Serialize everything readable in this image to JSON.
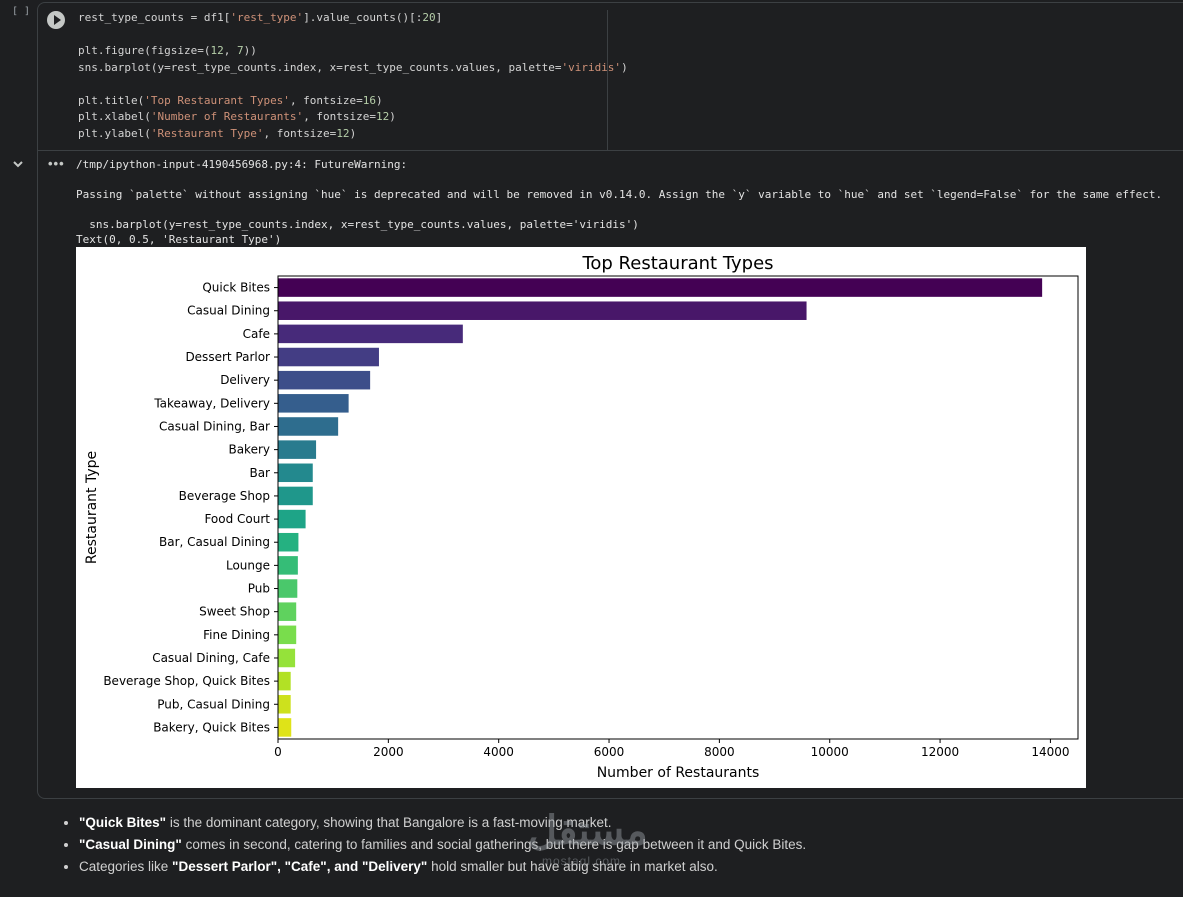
{
  "cell": {
    "bracket": "[ ]",
    "code_lines": [
      [
        [
          "rest_type_counts = df1[",
          ""
        ],
        [
          "'rest_type'",
          "s"
        ],
        [
          "].value_counts()[:",
          ""
        ],
        [
          "20",
          "n"
        ],
        [
          "]",
          ""
        ]
      ],
      [],
      [
        [
          "plt.figure(figsize=(",
          ""
        ],
        [
          "12",
          "n"
        ],
        [
          ", ",
          ""
        ],
        [
          "7",
          "n"
        ],
        [
          "))",
          ""
        ]
      ],
      [
        [
          "sns.barplot(y=rest_type_counts.index, x=rest_type_counts.values, palette=",
          ""
        ],
        [
          "'viridis'",
          "s"
        ],
        [
          ")",
          ""
        ]
      ],
      [],
      [
        [
          "plt.title(",
          ""
        ],
        [
          "'Top Restaurant Types'",
          "s"
        ],
        [
          ", fontsize=",
          ""
        ],
        [
          "16",
          "n"
        ],
        [
          ")",
          ""
        ]
      ],
      [
        [
          "plt.xlabel(",
          ""
        ],
        [
          "'Number of Restaurants'",
          "s"
        ],
        [
          ", fontsize=",
          ""
        ],
        [
          "12",
          "n"
        ],
        [
          ")",
          ""
        ]
      ],
      [
        [
          "plt.ylabel(",
          ""
        ],
        [
          "'Restaurant Type'",
          "s"
        ],
        [
          ", fontsize=",
          ""
        ],
        [
          "12",
          "n"
        ],
        [
          ")",
          ""
        ]
      ]
    ]
  },
  "output": {
    "warning_path": "/tmp/ipython-input-4190456968.py:4: FutureWarning:",
    "warning_msg": "Passing `palette` without assigning `hue` is deprecated and will be removed in v0.14.0. Assign the `y` variable to `hue` and set `legend=False` for the same effect.",
    "warning_code": "  sns.barplot(y=rest_type_counts.index, x=rest_type_counts.values, palette='viridis')",
    "text_result": "Text(0, 0.5, 'Restaurant Type')"
  },
  "chart_data": {
    "type": "bar",
    "orientation": "horizontal",
    "title": "Top Restaurant Types",
    "xlabel": "Number of Restaurants",
    "ylabel": "Restaurant Type",
    "xlim": [
      0,
      14500
    ],
    "xticks": [
      0,
      2000,
      4000,
      6000,
      8000,
      10000,
      12000,
      14000
    ],
    "grid": false,
    "categories": [
      "Quick Bites",
      "Casual Dining",
      "Cafe",
      "Dessert Parlor",
      "Delivery",
      "Takeaway, Delivery",
      "Casual Dining, Bar",
      "Bakery",
      "Bar",
      "Beverage Shop",
      "Food Court",
      "Bar, Casual Dining",
      "Lounge",
      "Pub",
      "Sweet Shop",
      "Fine Dining",
      "Casual Dining, Cafe",
      "Beverage Shop, Quick Bites",
      "Pub, Casual Dining",
      "Bakery, Quick Bites"
    ],
    "values": [
      13850,
      9580,
      3350,
      1830,
      1670,
      1280,
      1090,
      690,
      630,
      630,
      500,
      370,
      360,
      350,
      330,
      330,
      310,
      230,
      230,
      240
    ],
    "colors": [
      "#440154",
      "#481769",
      "#472a7a",
      "#433d84",
      "#3d4e8a",
      "#355e8d",
      "#2e6d8e",
      "#297b8e",
      "#23898e",
      "#1f978b",
      "#1ea487",
      "#25b181",
      "#35bd77",
      "#4ac86b",
      "#5fd25e",
      "#79dd4c",
      "#95e23a",
      "#b2e125",
      "#cde11d",
      "#dfe318"
    ]
  },
  "notes": [
    {
      "bold": "\"Quick Bites\"",
      "rest": " is the dominant category, showing that Bangalore is a fast-moving market."
    },
    {
      "bold": "\"Casual Dining\"",
      "rest": " comes in second, catering to families and social gatherings, but there is gap between it and Quick Bites."
    },
    {
      "pre": "Categories like ",
      "bold": "\"Dessert Parlor\", \"Cafe\", and \"Delivery\"",
      "rest": " hold smaller but have abig share in market also."
    }
  ],
  "icons": {
    "run": "play-circle-icon",
    "collapse": "chevron-down-icon",
    "output_menu": "more-horizontal-icon"
  }
}
